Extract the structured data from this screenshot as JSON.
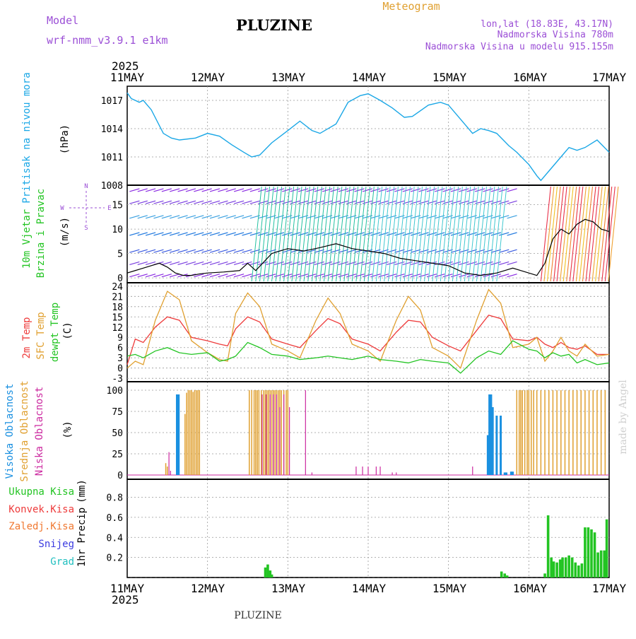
{
  "header": {
    "model_label": "Model",
    "model_name": "wrf-nmm_v3.9.1 e1km",
    "station": "PLUZINE",
    "meteogram": "Meteogram",
    "coords": "lon,lat (18.83E, 43.17N)",
    "altitude": "Nadmorska Visina 780m",
    "model_altitude": "Nadmorska Visina u modelu 915.155m",
    "year": "2025",
    "footer_station": "PLUZINE",
    "credit": "made by Angel"
  },
  "colors": {
    "pressure": "#1aa7e6",
    "temp2m": "#ee3b3b",
    "sfc_temp": "#e0a030",
    "dewpt": "#22c422",
    "high_cloud": "#1a90e0",
    "mid_cloud": "#e0a030",
    "low_cloud": "#cc2aa0",
    "precip": "#22c422",
    "legend_purple": "#9b4fd6"
  },
  "x_axis": {
    "labels": [
      "11MAY",
      "12MAY",
      "13MAY",
      "14MAY",
      "15MAY",
      "16MAY",
      "17MAY"
    ]
  },
  "chart_data": [
    {
      "type": "line",
      "id": "pressure",
      "ylabel_left": "Pritisak na nivou mora",
      "ylabel": "(hPa)",
      "yticks": [
        1008,
        1011,
        1014,
        1017
      ],
      "ylim": [
        1008,
        1018.5
      ],
      "x_days": [
        0,
        0.05,
        0.15,
        0.2,
        0.3,
        0.45,
        0.55,
        0.65,
        0.85,
        1.0,
        1.15,
        1.3,
        1.45,
        1.55,
        1.65,
        1.8,
        2.0,
        2.15,
        2.3,
        2.4,
        2.6,
        2.75,
        2.9,
        3.0,
        3.15,
        3.3,
        3.45,
        3.55,
        3.75,
        3.9,
        4.0,
        4.15,
        4.3,
        4.4,
        4.5,
        4.6,
        4.75,
        4.85,
        5.0,
        5.1,
        5.15,
        5.25,
        5.4,
        5.5,
        5.6,
        5.7,
        5.85,
        6.0
      ],
      "values": [
        1017.8,
        1017.2,
        1016.8,
        1017.0,
        1016.0,
        1013.5,
        1013.0,
        1012.8,
        1013.0,
        1013.5,
        1013.2,
        1012.3,
        1011.5,
        1011.0,
        1011.2,
        1012.5,
        1013.8,
        1014.8,
        1013.8,
        1013.5,
        1014.5,
        1016.8,
        1017.5,
        1017.7,
        1017.0,
        1016.2,
        1015.2,
        1015.3,
        1016.5,
        1016.8,
        1016.5,
        1015.0,
        1013.5,
        1014.0,
        1013.8,
        1013.5,
        1012.2,
        1011.5,
        1010.2,
        1009.0,
        1008.5,
        1009.5,
        1011.0,
        1012.0,
        1011.7,
        1012.0,
        1012.8,
        1011.5
      ]
    },
    {
      "type": "line",
      "id": "wind",
      "ylabel_left": "10m Vjetar",
      "ylabel_left2": "Brzina i Pravac",
      "ylabel": "(m/s)",
      "compass": [
        "N",
        "W",
        "E",
        "S"
      ],
      "yticks": [
        0,
        5,
        10,
        15
      ],
      "ylim": [
        -1,
        19
      ],
      "x_days": [
        0,
        0.1,
        0.2,
        0.3,
        0.4,
        0.5,
        0.6,
        0.7,
        0.8,
        0.9,
        1.0,
        1.2,
        1.4,
        1.5,
        1.6,
        1.8,
        2.0,
        2.2,
        2.4,
        2.6,
        2.8,
        3.0,
        3.2,
        3.4,
        3.6,
        3.8,
        4.0,
        4.2,
        4.4,
        4.6,
        4.8,
        5.0,
        5.1,
        5.2,
        5.3,
        5.4,
        5.5,
        5.6,
        5.7,
        5.8,
        5.9,
        6.0
      ],
      "speed": [
        1.0,
        1.5,
        2.0,
        2.5,
        3.0,
        2.2,
        1.0,
        0.5,
        0.5,
        0.8,
        1.0,
        1.2,
        1.5,
        3.0,
        1.5,
        5.0,
        6.0,
        5.5,
        6.2,
        7.0,
        6.0,
        5.5,
        5.0,
        4.0,
        3.5,
        3.0,
        2.5,
        1.0,
        0.5,
        1.0,
        2.0,
        1.0,
        0.5,
        3.0,
        8.0,
        10.0,
        9.0,
        11.0,
        12.0,
        11.5,
        10.0,
        9.5
      ]
    },
    {
      "type": "line",
      "id": "temperature",
      "ylabel_left": "2m Temp",
      "ylabel_left2": "SFC Temp",
      "ylabel_left3": "dewpt Temp",
      "ylabel": "(C)",
      "yticks": [
        -3,
        0,
        3,
        6,
        9,
        12,
        15,
        18,
        21,
        24
      ],
      "ylim": [
        -4,
        25
      ],
      "x_days": [
        0,
        0.1,
        0.2,
        0.35,
        0.5,
        0.65,
        0.8,
        1.0,
        1.15,
        1.25,
        1.35,
        1.5,
        1.65,
        1.8,
        2.0,
        2.15,
        2.35,
        2.5,
        2.65,
        2.8,
        3.0,
        3.15,
        3.35,
        3.5,
        3.65,
        3.8,
        4.0,
        4.15,
        4.35,
        4.5,
        4.65,
        4.8,
        5.0,
        5.1,
        5.2,
        5.3,
        5.4,
        5.5,
        5.6,
        5.7,
        5.85,
        6.0
      ],
      "series": [
        {
          "name": "2m Temp",
          "values": [
            1.0,
            8.5,
            7.5,
            12.0,
            15.0,
            14.0,
            9.0,
            8.0,
            7.0,
            6.5,
            11.5,
            15.0,
            13.5,
            8.5,
            7.0,
            6.0,
            11.0,
            14.5,
            13.0,
            8.5,
            7.0,
            5.0,
            10.5,
            14.0,
            13.5,
            9.0,
            6.5,
            5.0,
            11.0,
            15.5,
            14.5,
            8.5,
            8.0,
            9.0,
            7.0,
            6.0,
            7.5,
            6.0,
            5.5,
            6.5,
            4.0,
            4.0
          ]
        },
        {
          "name": "SFC Temp",
          "values": [
            0.0,
            2.0,
            1.0,
            14.0,
            22.5,
            20.0,
            8.0,
            4.5,
            2.5,
            2.0,
            16.0,
            22.0,
            18.0,
            7.0,
            5.0,
            3.0,
            14.0,
            20.5,
            16.0,
            7.0,
            5.0,
            2.0,
            14.0,
            21.0,
            17.0,
            6.0,
            3.5,
            0.0,
            14.0,
            23.0,
            19.0,
            6.0,
            7.0,
            9.0,
            2.0,
            5.0,
            9.0,
            5.0,
            3.5,
            7.0,
            3.5,
            4.0
          ]
        },
        {
          "name": "dewpt Temp",
          "values": [
            3.5,
            4.0,
            3.0,
            5.0,
            6.0,
            4.5,
            4.0,
            4.5,
            2.0,
            2.5,
            3.5,
            7.5,
            6.0,
            4.0,
            3.5,
            2.5,
            3.0,
            3.5,
            3.0,
            2.5,
            3.5,
            2.5,
            2.0,
            1.5,
            2.5,
            2.0,
            1.5,
            -1.5,
            3.0,
            5.0,
            4.0,
            8.0,
            5.5,
            5.0,
            3.0,
            4.5,
            3.5,
            4.0,
            1.5,
            2.5,
            1.0,
            1.5
          ]
        }
      ]
    },
    {
      "type": "bar",
      "id": "cloud",
      "ylabel_left": "Visoka Oblacnost",
      "ylabel_left2": "Srednja Oblacnost",
      "ylabel_left3": "Niska Oblacnost",
      "ylabel": "(%)",
      "yticks": [
        0,
        25,
        50,
        75,
        100
      ],
      "ylim": [
        -5,
        110
      ],
      "series": [
        {
          "name": "Visoka Oblacnost",
          "x_days": [
            0.62,
            0.64,
            4.49,
            4.51,
            4.53,
            4.55,
            4.6,
            4.65,
            4.7,
            4.72,
            4.78,
            4.8
          ],
          "values": [
            95,
            95,
            47,
            95,
            95,
            80,
            70,
            70,
            3,
            3,
            4,
            4
          ]
        },
        {
          "name": "Srednja Oblacnost",
          "x_days": [
            0.48,
            0.5,
            0.72,
            0.74,
            0.76,
            0.78,
            0.8,
            0.82,
            0.84,
            0.86,
            0.88,
            0.9,
            1.52,
            1.55,
            1.58,
            1.6,
            1.62,
            1.64,
            1.67,
            1.7,
            1.72,
            1.74,
            1.76,
            1.78,
            1.8,
            1.82,
            1.84,
            1.86,
            1.88,
            1.9,
            1.92,
            1.95,
            1.98,
            2.0,
            4.85,
            4.88,
            4.9,
            4.92,
            4.95,
            4.98,
            5.0,
            5.03,
            5.06,
            5.1,
            5.15,
            5.2,
            5.25,
            5.3,
            5.35,
            5.4,
            5.45,
            5.5,
            5.55,
            5.6,
            5.65,
            5.7,
            5.75,
            5.8,
            5.85,
            5.9,
            5.95
          ],
          "values": [
            14,
            10,
            72,
            97,
            100,
            100,
            100,
            98,
            100,
            100,
            100,
            100,
            100,
            100,
            100,
            100,
            100,
            100,
            100,
            100,
            100,
            100,
            100,
            100,
            100,
            100,
            100,
            100,
            100,
            100,
            100,
            100,
            100,
            100,
            100,
            100,
            100,
            100,
            100,
            100,
            100,
            100,
            100,
            100,
            100,
            100,
            100,
            100,
            100,
            100,
            100,
            100,
            100,
            100,
            100,
            100,
            100,
            100,
            100,
            100,
            100
          ]
        },
        {
          "name": "Niska Oblacnost",
          "x_days": [
            0.52,
            0.54,
            1.68,
            1.73,
            1.78,
            1.82,
            1.86,
            1.9,
            1.95,
            2.02,
            2.22,
            2.3,
            2.85,
            2.93,
            3.0,
            3.1,
            3.15,
            3.3,
            3.35,
            4.3
          ],
          "values": [
            27,
            5,
            95,
            95,
            95,
            95,
            95,
            80,
            95,
            80,
            100,
            3,
            10,
            10,
            10,
            10,
            10,
            3,
            3,
            10
          ]
        }
      ]
    },
    {
      "type": "bar",
      "id": "precip",
      "ylabel_left": "1hr Precip",
      "ylabel": "(mm)",
      "legend": [
        "Ukupna Kisa",
        "Konvek.Kisa",
        "Zaledj.Kisa",
        "Snijeg",
        "Grad"
      ],
      "yticks": [
        0.2,
        0.4,
        0.6,
        0.8
      ],
      "ylim": [
        0,
        0.98
      ],
      "x_days": [
        1.72,
        1.75,
        1.78,
        1.8,
        4.66,
        4.7,
        4.73,
        5.2,
        5.24,
        5.28,
        5.31,
        5.35,
        5.39,
        5.42,
        5.46,
        5.5,
        5.54,
        5.58,
        5.62,
        5.66,
        5.7,
        5.74,
        5.78,
        5.82,
        5.86,
        5.9,
        5.94,
        5.97
      ],
      "values": [
        0.1,
        0.13,
        0.07,
        0.03,
        0.06,
        0.04,
        0.02,
        0.04,
        0.62,
        0.2,
        0.16,
        0.15,
        0.18,
        0.2,
        0.2,
        0.22,
        0.2,
        0.15,
        0.12,
        0.14,
        0.5,
        0.5,
        0.48,
        0.45,
        0.25,
        0.27,
        0.27,
        0.58
      ]
    }
  ]
}
